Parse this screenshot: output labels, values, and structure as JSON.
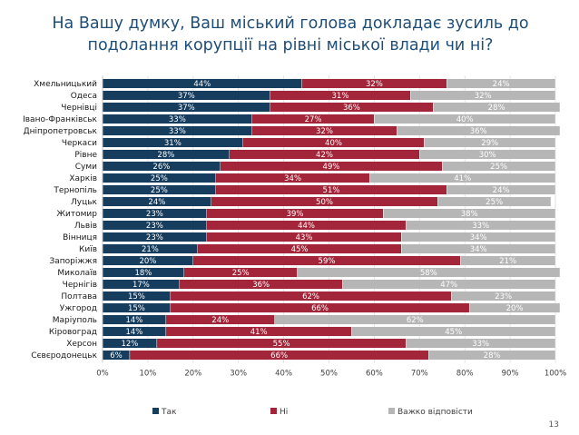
{
  "slide": {
    "title_line1": "На Вашу думку, Ваш міський голова докладає зусиль до",
    "title_line2": "подолання корупції на рівні міської влади чи ні?",
    "page_number": "13"
  },
  "chart_data": {
    "type": "bar",
    "orientation": "horizontal",
    "stacked": true,
    "percent_stacked": true,
    "categories": [
      "Хмельницький",
      "Одеса",
      "Чернівці",
      "Івано-Франківськ",
      "Дніпропетровськ",
      "Черкаси",
      "Рівне",
      "Суми",
      "Харків",
      "Тернопіль",
      "Луцьк",
      "Житомир",
      "Львів",
      "Вінниця",
      "Київ",
      "Запоріжжя",
      "Миколаїв",
      "Чернігів",
      "Полтава",
      "Ужгород",
      "Маріуполь",
      "Кіровоград",
      "Херсон",
      "Сєвєродонецьк"
    ],
    "series": [
      {
        "name": "Так",
        "color": "#173d5e",
        "values": [
          44,
          37,
          37,
          33,
          33,
          31,
          28,
          26,
          25,
          25,
          24,
          23,
          23,
          23,
          21,
          20,
          18,
          17,
          15,
          15,
          14,
          14,
          12,
          6
        ]
      },
      {
        "name": "Ні",
        "color": "#a3253a",
        "values": [
          32,
          31,
          36,
          27,
          32,
          40,
          42,
          49,
          34,
          51,
          50,
          39,
          44,
          43,
          45,
          59,
          25,
          36,
          62,
          66,
          24,
          41,
          55,
          66
        ]
      },
      {
        "name": "Важко відповісти",
        "color": "#b6b6b6",
        "values": [
          24,
          32,
          28,
          40,
          36,
          29,
          30,
          25,
          41,
          24,
          25,
          38,
          33,
          34,
          34,
          21,
          58,
          47,
          23,
          20,
          62,
          45,
          33,
          28
        ]
      }
    ],
    "label_suffix": "%",
    "xlim": [
      0,
      100
    ],
    "x_ticks": [
      "0%",
      "10%",
      "20%",
      "30%",
      "40%",
      "50%",
      "60%",
      "70%",
      "80%",
      "90%",
      "100%"
    ],
    "legend_position": "bottom",
    "grid": true
  }
}
